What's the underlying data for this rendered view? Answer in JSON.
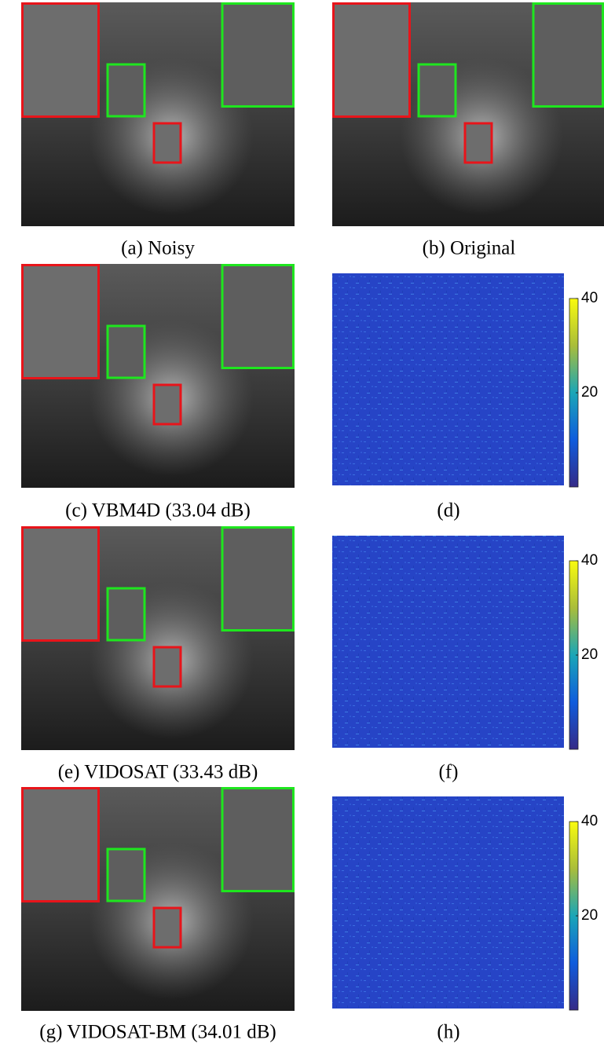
{
  "panels": [
    {
      "caption": "(a) Noisy"
    },
    {
      "caption": "(b) Original"
    },
    {
      "caption": "(c) VBM4D (33.04 dB)"
    },
    {
      "caption": "(d)"
    },
    {
      "caption": "(e) VIDOSAT (33.43 dB)"
    },
    {
      "caption": "(f)"
    },
    {
      "caption": "(g) VIDOSAT-BM (34.01 dB)"
    },
    {
      "caption": "(h)"
    }
  ],
  "colorbar": {
    "clim": [
      0,
      40
    ],
    "ticks": [
      20,
      40
    ]
  }
}
